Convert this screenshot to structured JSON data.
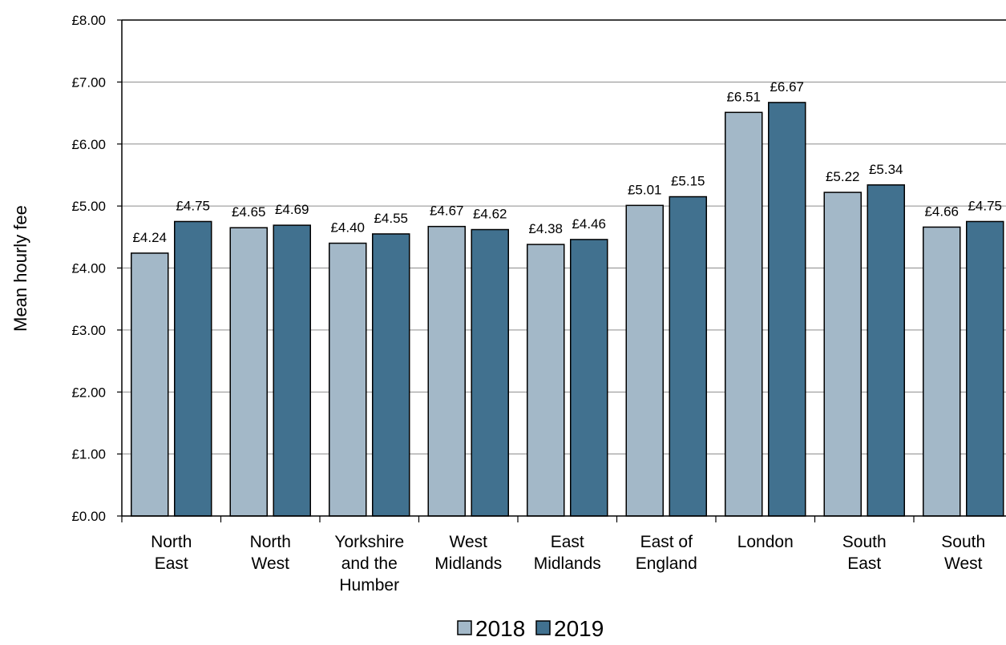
{
  "chart_data": {
    "type": "bar",
    "title": "",
    "xlabel": "",
    "ylabel": "Mean hourly fee",
    "ylim": [
      0,
      8
    ],
    "yticks": [
      "£0.00",
      "£1.00",
      "£2.00",
      "£3.00",
      "£4.00",
      "£5.00",
      "£6.00",
      "£7.00",
      "£8.00"
    ],
    "grid": true,
    "legend_position": "bottom",
    "categories": [
      [
        "North",
        "East"
      ],
      [
        "North",
        "West"
      ],
      [
        "Yorkshire",
        "and the",
        "Humber"
      ],
      [
        "West",
        "Midlands"
      ],
      [
        "East",
        "Midlands"
      ],
      [
        "East of",
        "England"
      ],
      [
        "London"
      ],
      [
        "South",
        "East"
      ],
      [
        "South",
        "West"
      ]
    ],
    "series": [
      {
        "name": "2018",
        "color": "#a3b8c8",
        "values": [
          4.24,
          4.65,
          4.4,
          4.67,
          4.38,
          5.01,
          6.51,
          5.22,
          4.66
        ],
        "labels": [
          "£4.24",
          "£4.65",
          "£4.40",
          "£4.67",
          "£4.38",
          "£5.01",
          "£6.51",
          "£5.22",
          "£4.66"
        ]
      },
      {
        "name": "2019",
        "color": "#41718f",
        "values": [
          4.75,
          4.69,
          4.55,
          4.62,
          4.46,
          5.15,
          6.67,
          5.34,
          4.75
        ],
        "labels": [
          "£4.75",
          "£4.69",
          "£4.55",
          "£4.62",
          "£4.46",
          "£5.15",
          "£6.67",
          "£5.34",
          "£4.75"
        ]
      }
    ]
  }
}
